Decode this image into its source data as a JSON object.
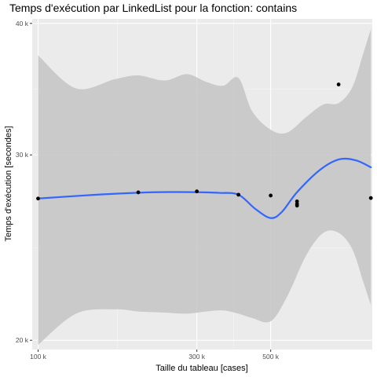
{
  "chart_data": {
    "type": "scatter",
    "title": "Temps d'exécution par LinkedList pour la fonction: contains",
    "xlabel": "Taille du tableau [cases]",
    "ylabel": "Temps d'exécution [secondes]",
    "x_scale": "log10",
    "y_scale": "log10",
    "xlim": [
      96000,
      1010000
    ],
    "ylim": [
      19600,
      40400
    ],
    "x_ticks": [
      {
        "value": 100000,
        "label": "100 k"
      },
      {
        "value": 300000,
        "label": "300 k"
      },
      {
        "value": 500000,
        "label": "500 k"
      }
    ],
    "y_ticks": [
      {
        "value": 20000,
        "label": "20 k"
      },
      {
        "value": 30000,
        "label": "30 k"
      },
      {
        "value": 40000,
        "label": "40 k"
      }
    ],
    "grid": true,
    "points": [
      {
        "x": 100000,
        "y": 27270
      },
      {
        "x": 200000,
        "y": 27640
      },
      {
        "x": 300000,
        "y": 27700
      },
      {
        "x": 400000,
        "y": 27500
      },
      {
        "x": 500000,
        "y": 27450
      },
      {
        "x": 600000,
        "y": 27100
      },
      {
        "x": 600000,
        "y": 26950
      },
      {
        "x": 600000,
        "y": 26850
      },
      {
        "x": 800000,
        "y": 35000
      },
      {
        "x": 1000000,
        "y": 27300
      }
    ],
    "smooth_line": [
      {
        "x": 100000,
        "y": 27270
      },
      {
        "x": 150000,
        "y": 27500
      },
      {
        "x": 200000,
        "y": 27620
      },
      {
        "x": 250000,
        "y": 27660
      },
      {
        "x": 300000,
        "y": 27650
      },
      {
        "x": 350000,
        "y": 27610
      },
      {
        "x": 400000,
        "y": 27500
      },
      {
        "x": 450000,
        "y": 26650
      },
      {
        "x": 500000,
        "y": 26130
      },
      {
        "x": 540000,
        "y": 26480
      },
      {
        "x": 600000,
        "y": 27650
      },
      {
        "x": 700000,
        "y": 29000
      },
      {
        "x": 800000,
        "y": 29700
      },
      {
        "x": 900000,
        "y": 29650
      },
      {
        "x": 1000000,
        "y": 29200
      }
    ],
    "ribbon_upper": [
      {
        "x": 100000,
        "y": 37300
      },
      {
        "x": 130000,
        "y": 34700
      },
      {
        "x": 170000,
        "y": 35400
      },
      {
        "x": 200000,
        "y": 35700
      },
      {
        "x": 240000,
        "y": 35300
      },
      {
        "x": 280000,
        "y": 35800
      },
      {
        "x": 320000,
        "y": 35200
      },
      {
        "x": 360000,
        "y": 34900
      },
      {
        "x": 400000,
        "y": 35500
      },
      {
        "x": 440000,
        "y": 33000
      },
      {
        "x": 500000,
        "y": 31700
      },
      {
        "x": 560000,
        "y": 31500
      },
      {
        "x": 640000,
        "y": 32600
      },
      {
        "x": 720000,
        "y": 33500
      },
      {
        "x": 800000,
        "y": 33600
      },
      {
        "x": 880000,
        "y": 34800
      },
      {
        "x": 950000,
        "y": 37500
      },
      {
        "x": 1000000,
        "y": 39500
      }
    ],
    "ribbon_lower": [
      {
        "x": 100000,
        "y": 19800
      },
      {
        "x": 130000,
        "y": 21200
      },
      {
        "x": 170000,
        "y": 21400
      },
      {
        "x": 200000,
        "y": 21300
      },
      {
        "x": 240000,
        "y": 21250
      },
      {
        "x": 280000,
        "y": 21200
      },
      {
        "x": 320000,
        "y": 21300
      },
      {
        "x": 360000,
        "y": 21350
      },
      {
        "x": 400000,
        "y": 21200
      },
      {
        "x": 440000,
        "y": 21000
      },
      {
        "x": 500000,
        "y": 20850
      },
      {
        "x": 560000,
        "y": 22000
      },
      {
        "x": 640000,
        "y": 24100
      },
      {
        "x": 720000,
        "y": 25300
      },
      {
        "x": 800000,
        "y": 25300
      },
      {
        "x": 880000,
        "y": 24400
      },
      {
        "x": 950000,
        "y": 22700
      },
      {
        "x": 1000000,
        "y": 21600
      }
    ],
    "colors": {
      "panel_background": "#ebebeb",
      "grid_major": "#ffffff",
      "ribbon": "#c4c4c4",
      "smooth_line": "#3366ff",
      "points": "#000000",
      "tick_label": "#4d4d4d",
      "tick_mark": "#333333"
    }
  }
}
